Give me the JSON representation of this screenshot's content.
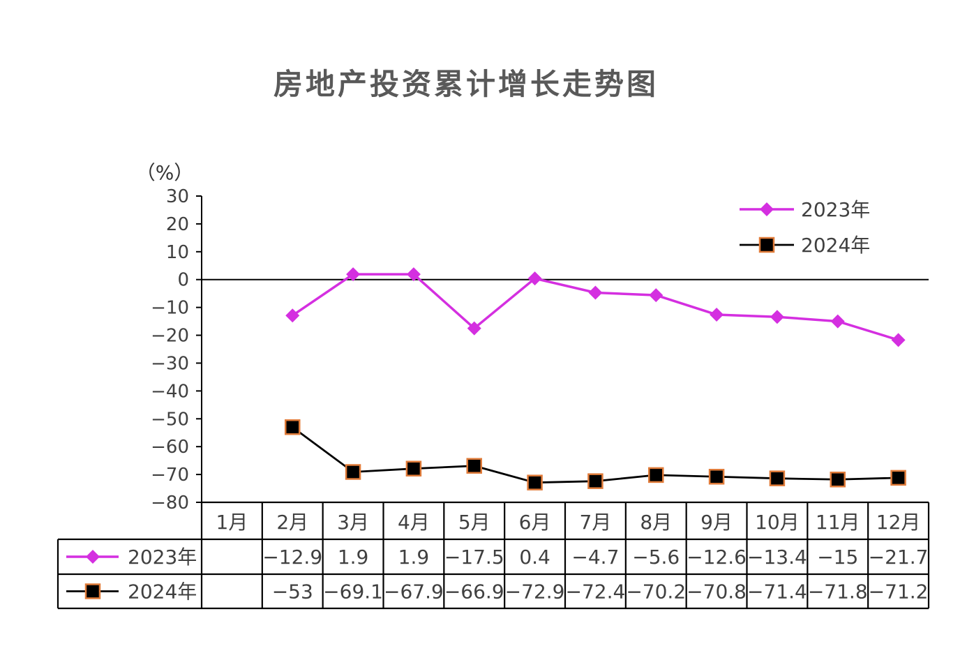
{
  "chart_data": {
    "type": "line",
    "title": "房地产投资累计增长走势图",
    "unit": "（%）",
    "categories": [
      "1月",
      "2月",
      "3月",
      "4月",
      "5月",
      "6月",
      "7月",
      "8月",
      "9月",
      "10月",
      "11月",
      "12月"
    ],
    "yticks": [
      "30",
      "20",
      "10",
      "0",
      "−10",
      "−20",
      "−30",
      "−40",
      "−50",
      "−60",
      "−70",
      "−80"
    ],
    "ylim": [
      -80,
      30
    ],
    "legend_position": "top-right",
    "grid": false,
    "series": [
      {
        "name": "2023年",
        "color": "#d42fe0",
        "marker": "diamond",
        "values": [
          null,
          -12.9,
          1.9,
          1.9,
          -17.5,
          0.4,
          -4.7,
          -5.6,
          -12.6,
          -13.4,
          -15,
          -21.7
        ],
        "labels": [
          "",
          "−12.9",
          "1.9",
          "1.9",
          "−17.5",
          "0.4",
          "−4.7",
          "−5.6",
          "−12.6",
          "−13.4",
          "−15",
          "−21.7"
        ]
      },
      {
        "name": "2024年",
        "color": "#000000",
        "marker_edge": "#e07b39",
        "marker": "square",
        "values": [
          null,
          -53,
          -69.1,
          -67.9,
          -66.9,
          -72.9,
          -72.4,
          -70.2,
          -70.8,
          -71.4,
          -71.8,
          -71.2
        ],
        "labels": [
          "",
          "−53",
          "−69.1",
          "−67.9",
          "−66.9",
          "−72.9",
          "−72.4",
          "−70.2",
          "−70.8",
          "−71.4",
          "−71.8",
          "−71.2"
        ]
      }
    ]
  }
}
